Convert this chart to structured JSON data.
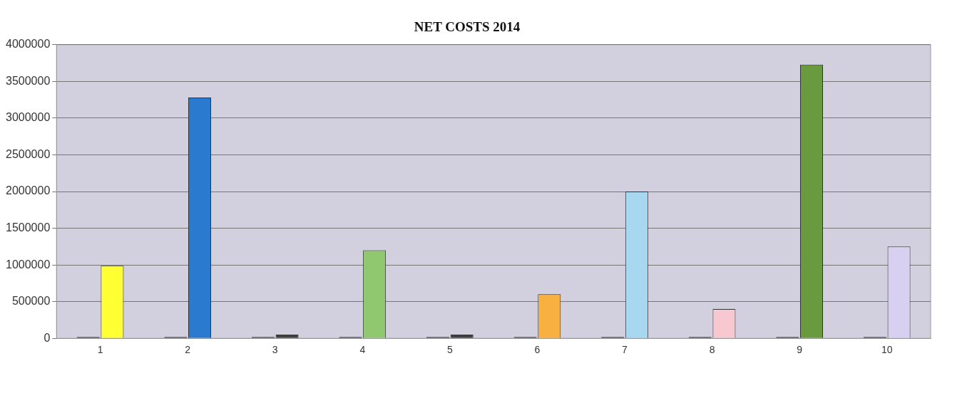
{
  "chart_data": {
    "type": "bar",
    "title": "NET COSTS 2014",
    "categories": [
      "1",
      "2",
      "3",
      "4",
      "5",
      "6",
      "7",
      "8",
      "9",
      "10"
    ],
    "series": [
      {
        "color": "#404040",
        "values": [
          0,
          0,
          0,
          0,
          0,
          0,
          0,
          0,
          0,
          0
        ]
      },
      {
        "colors": [
          "#ffff33",
          "#2a7ad0",
          "#404040",
          "#90c870",
          "#404040",
          "#f8b040",
          "#a8d8f0",
          "#f8c8d0",
          "#6a9a40",
          "#d8d0f0"
        ],
        "values": [
          990000,
          3280000,
          50000,
          1200000,
          50000,
          600000,
          2000000,
          400000,
          3730000,
          1250000
        ]
      }
    ],
    "ylim": [
      0,
      4000000
    ],
    "yticks": [
      0,
      500000,
      1000000,
      1500000,
      2000000,
      2500000,
      3000000,
      3500000,
      4000000
    ],
    "grid": "y",
    "legend": false
  }
}
